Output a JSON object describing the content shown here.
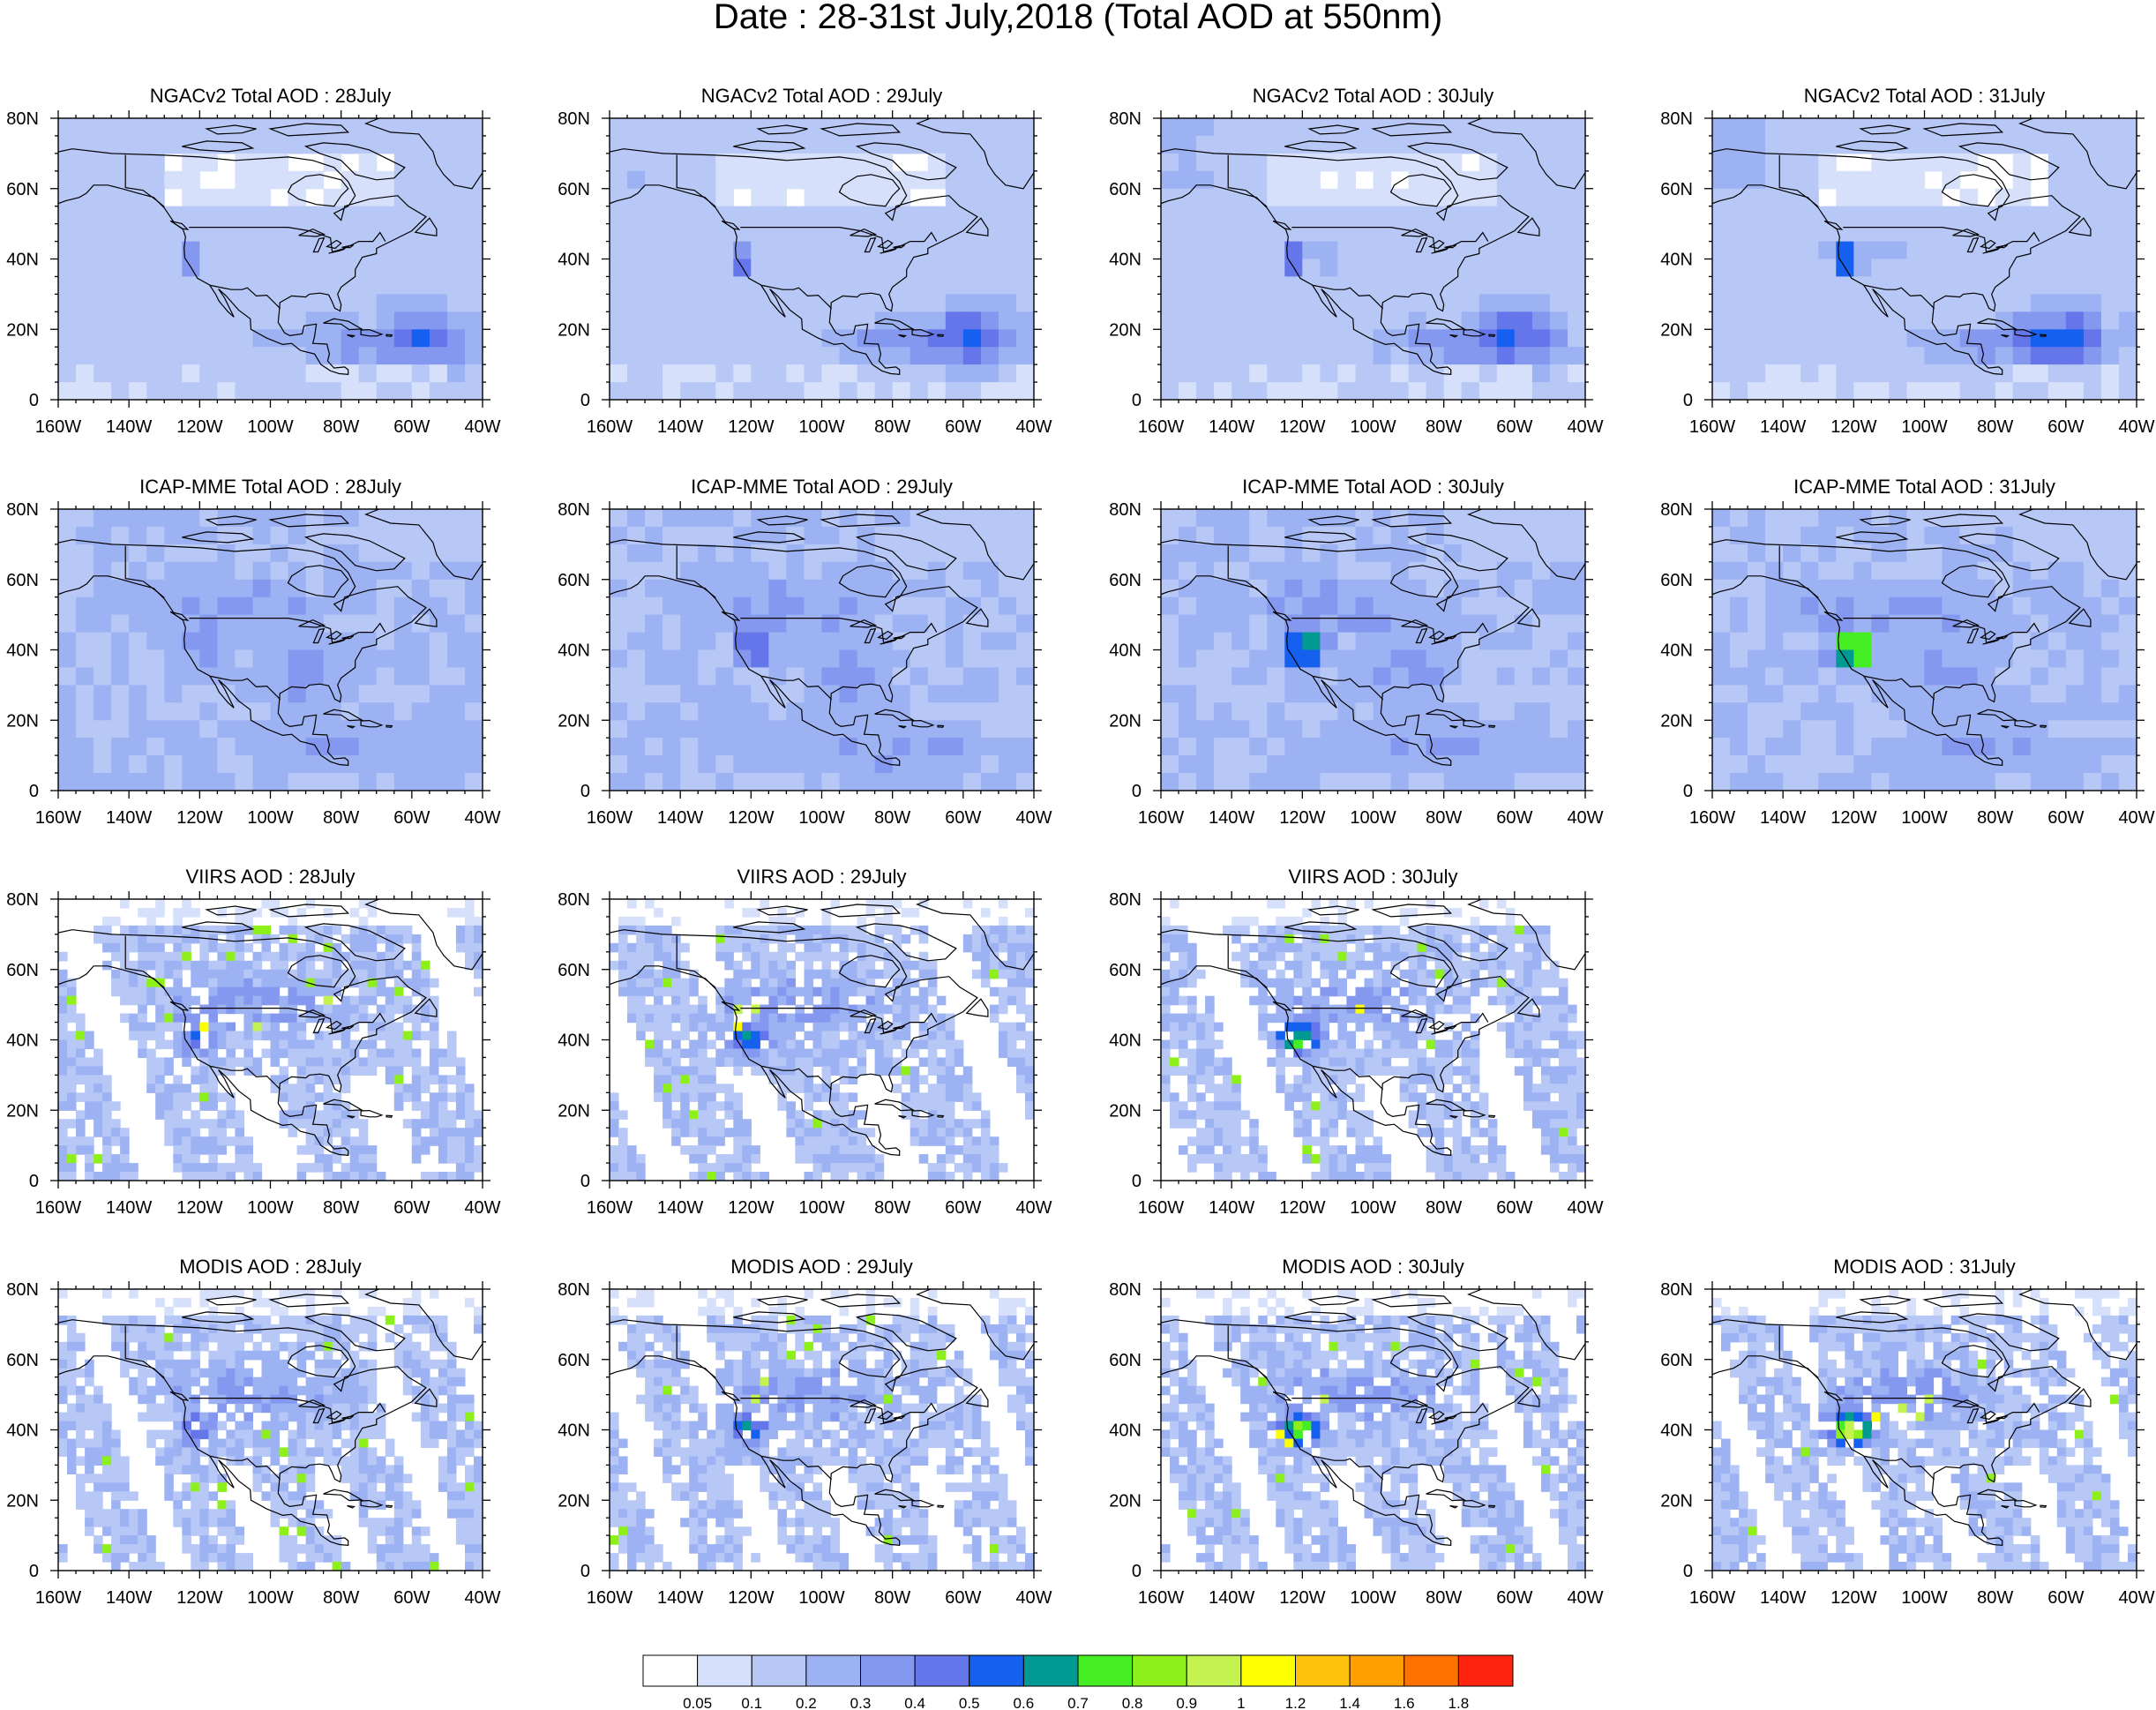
{
  "title": "Date : 28-31st July,2018 (Total AOD at 550nm)",
  "axes": {
    "lon_ticks": [
      "160W",
      "140W",
      "120W",
      "100W",
      "80W",
      "60W",
      "40W"
    ],
    "lat_ticks": [
      "80N",
      "60N",
      "40N",
      "20N",
      "0"
    ],
    "lon_range": [
      -160,
      -40
    ],
    "lat_range": [
      0,
      80
    ]
  },
  "rows": [
    {
      "source": "ngac",
      "panels": [
        {
          "title": "NGACv2 Total AOD : 28July"
        },
        {
          "title": "NGACv2 Total AOD : 29July"
        },
        {
          "title": "NGACv2 Total AOD : 30July"
        },
        {
          "title": "NGACv2 Total AOD : 31July"
        }
      ]
    },
    {
      "source": "icap",
      "panels": [
        {
          "title": "ICAP-MME Total AOD : 28July"
        },
        {
          "title": "ICAP-MME Total AOD : 29July"
        },
        {
          "title": "ICAP-MME Total AOD : 30July"
        },
        {
          "title": "ICAP-MME Total AOD : 31July"
        }
      ]
    },
    {
      "source": "viirs",
      "panels": [
        {
          "title": "VIIRS AOD : 28July"
        },
        {
          "title": "VIIRS AOD : 29July"
        },
        {
          "title": "VIIRS AOD : 30July"
        }
      ]
    },
    {
      "source": "modis",
      "panels": [
        {
          "title": "MODIS AOD : 28July"
        },
        {
          "title": "MODIS AOD : 29July"
        },
        {
          "title": "MODIS AOD : 30July"
        },
        {
          "title": "MODIS AOD : 31July"
        }
      ]
    }
  ],
  "colorbar": {
    "labels": [
      "0.05",
      "0.1",
      "0.2",
      "0.3",
      "0.4",
      "0.5",
      "0.6",
      "0.7",
      "0.8",
      "0.9",
      "1",
      "1.2",
      "1.4",
      "1.6",
      "1.8"
    ],
    "colors": [
      "#ffffff",
      "#d6e0fb",
      "#b8c8f6",
      "#9db2f3",
      "#8498ef",
      "#6575ea",
      "#1560ee",
      "#009a92",
      "#44ee22",
      "#8ef01a",
      "#c4f24e",
      "#fdff00",
      "#ffc20a",
      "#ff9f00",
      "#ff7200",
      "#ff2410"
    ]
  }
}
